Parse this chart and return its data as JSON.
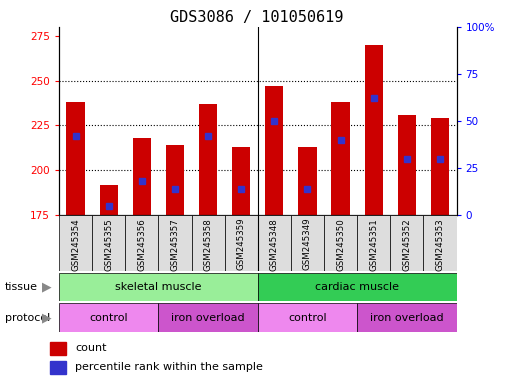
{
  "title": "GDS3086 / 101050619",
  "samples": [
    "GSM245354",
    "GSM245355",
    "GSM245356",
    "GSM245357",
    "GSM245358",
    "GSM245359",
    "GSM245348",
    "GSM245349",
    "GSM245350",
    "GSM245351",
    "GSM245352",
    "GSM245353"
  ],
  "count_values": [
    238,
    192,
    218,
    214,
    237,
    213,
    247,
    213,
    238,
    270,
    231,
    229
  ],
  "percentile_values": [
    42,
    5,
    18,
    14,
    42,
    14,
    50,
    14,
    40,
    62,
    30,
    30
  ],
  "ylim_left": [
    175,
    280
  ],
  "ylim_right": [
    0,
    100
  ],
  "yticks_left": [
    175,
    200,
    225,
    250,
    275
  ],
  "yticks_right": [
    0,
    25,
    50,
    75,
    100
  ],
  "bar_color": "#cc0000",
  "blue_color": "#3333cc",
  "bar_width": 0.55,
  "tissue_groups": [
    {
      "label": "skeletal muscle",
      "start": 0,
      "end": 5,
      "color": "#99ee99"
    },
    {
      "label": "cardiac muscle",
      "start": 6,
      "end": 11,
      "color": "#33cc55"
    }
  ],
  "protocol_groups": [
    {
      "label": "control",
      "start": 0,
      "end": 2,
      "color": "#ee88ee"
    },
    {
      "label": "iron overload",
      "start": 3,
      "end": 5,
      "color": "#cc55cc"
    },
    {
      "label": "control",
      "start": 6,
      "end": 8,
      "color": "#ee88ee"
    },
    {
      "label": "iron overload",
      "start": 9,
      "end": 11,
      "color": "#cc55cc"
    }
  ],
  "title_fontsize": 11,
  "tick_fontsize": 7.5,
  "label_fontsize": 8,
  "grid_yticks": [
    200,
    225,
    250
  ]
}
